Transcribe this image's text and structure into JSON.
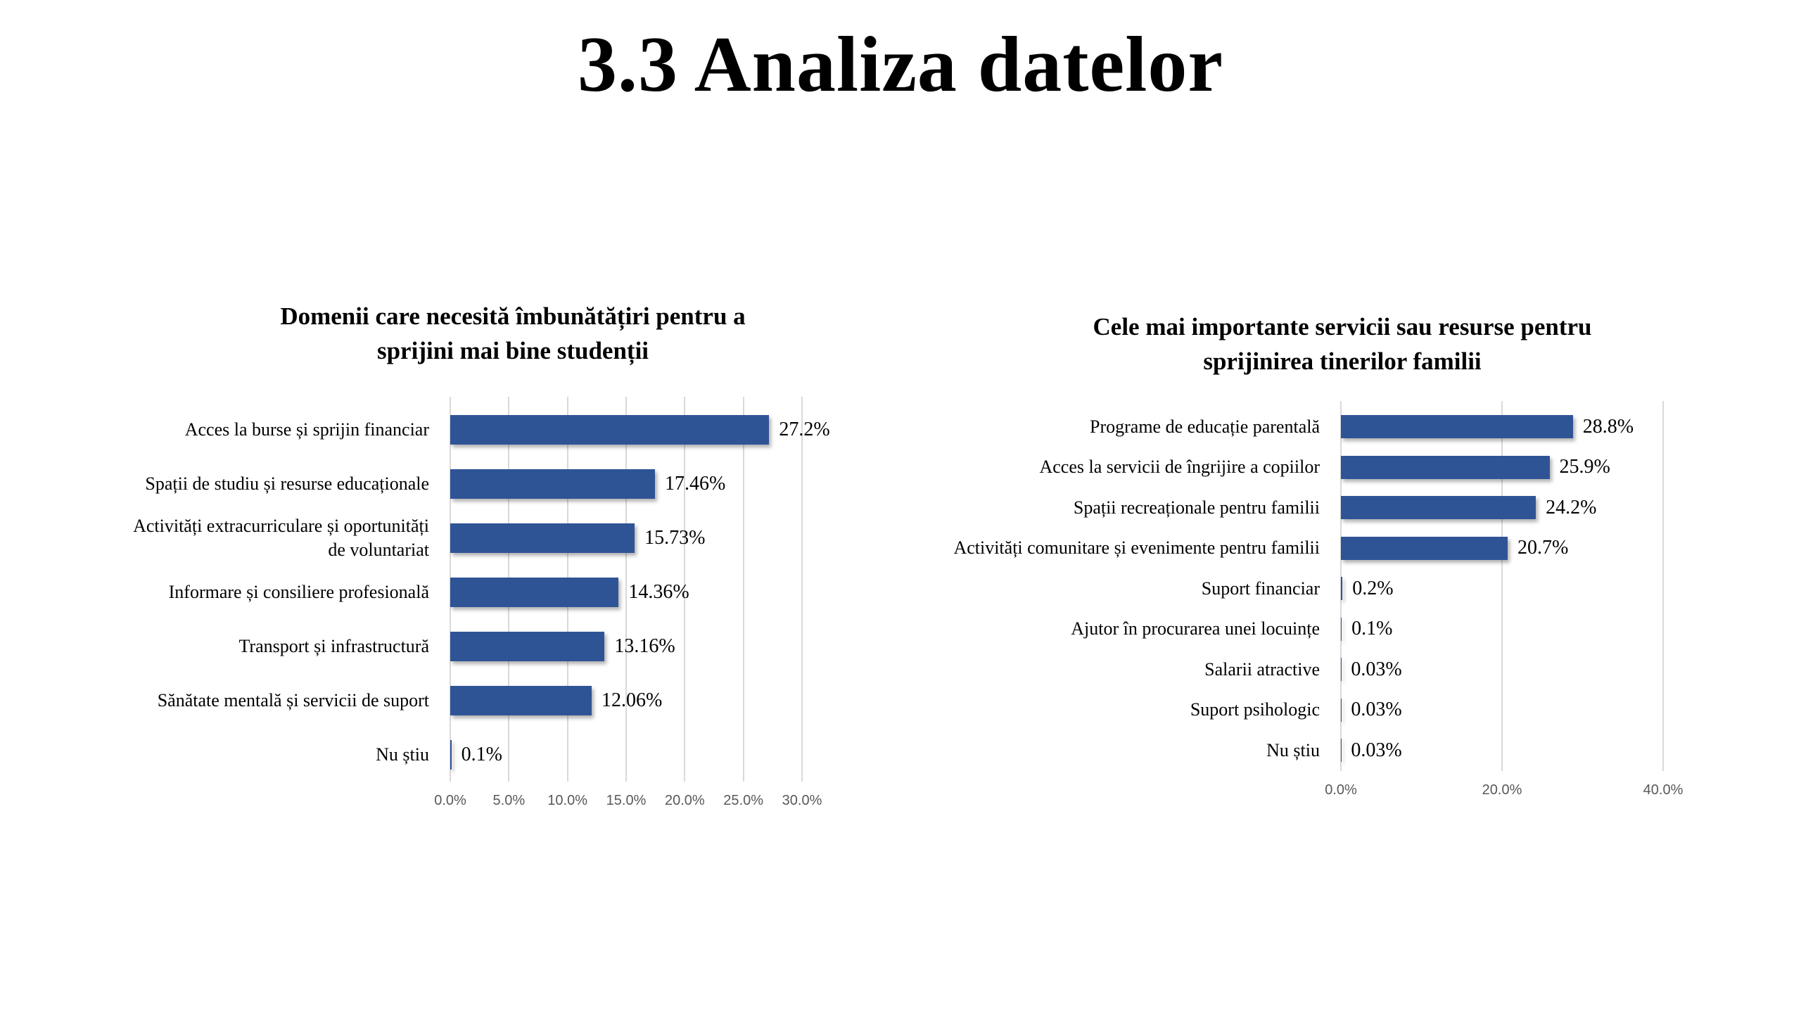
{
  "page": {
    "title": "3.3 Analiza datelor"
  },
  "colors": {
    "bar": "#2F5496",
    "gridline": "#D9D9D9",
    "tick_label": "#595959",
    "text": "#000000",
    "background": "#FFFFFF"
  },
  "chart_data": [
    {
      "type": "bar",
      "orientation": "horizontal",
      "title": "Domenii care necesită îmbunătățiri pentru a sprijini mai bine studenții",
      "title_lines": [
        "Domenii care necesită îmbunătățiri pentru a",
        "sprijini mai bine studenții"
      ],
      "categories": [
        "Acces la burse și sprijin financiar",
        "Spații de studiu și resurse educaționale",
        "Activități extracurriculare și oportunități\nde voluntariat",
        "Informare și consiliere profesională",
        "Transport și infrastructură",
        "Sănătate mentală și servicii de suport",
        "Nu știu"
      ],
      "values": [
        27.2,
        17.46,
        15.73,
        14.36,
        13.16,
        12.06,
        0.1
      ],
      "value_labels": [
        "27.2%",
        "17.46%",
        "15.73%",
        "14.36%",
        "13.16%",
        "12.06%",
        "0.1%"
      ],
      "xlabel": "",
      "ylabel": "",
      "xlim": [
        0,
        30
      ],
      "xticks": [
        "0.0%",
        "5.0%",
        "10.0%",
        "15.0%",
        "20.0%",
        "25.0%",
        "30.0%"
      ],
      "grid": true,
      "legend": false
    },
    {
      "type": "bar",
      "orientation": "horizontal",
      "title": "Cele mai importante servicii sau resurse pentru sprijinirea tinerilor familii",
      "title_lines": [
        "Cele mai importante servicii sau resurse pentru",
        "sprijinirea tinerilor familii"
      ],
      "categories": [
        "Programe de educație parentală",
        "Acces la servicii de îngrijire a copiilor",
        "Spații recreaționale pentru familii",
        "Activități comunitare și evenimente pentru familii",
        "Suport financiar",
        "Ajutor în procurarea unei locuințe",
        "Salarii atractive",
        "Suport psihologic",
        "Nu știu"
      ],
      "values": [
        28.8,
        25.9,
        24.2,
        20.7,
        0.2,
        0.1,
        0.03,
        0.03,
        0.03
      ],
      "value_labels": [
        "28.8%",
        "25.9%",
        "24.2%",
        "20.7%",
        "0.2%",
        "0.1%",
        "0.03%",
        "0.03%",
        "0.03%"
      ],
      "xlabel": "",
      "ylabel": "",
      "xlim": [
        0,
        40
      ],
      "xticks": [
        "0.0%",
        "20.0%",
        "40.0%"
      ],
      "grid": true,
      "legend": false
    }
  ]
}
